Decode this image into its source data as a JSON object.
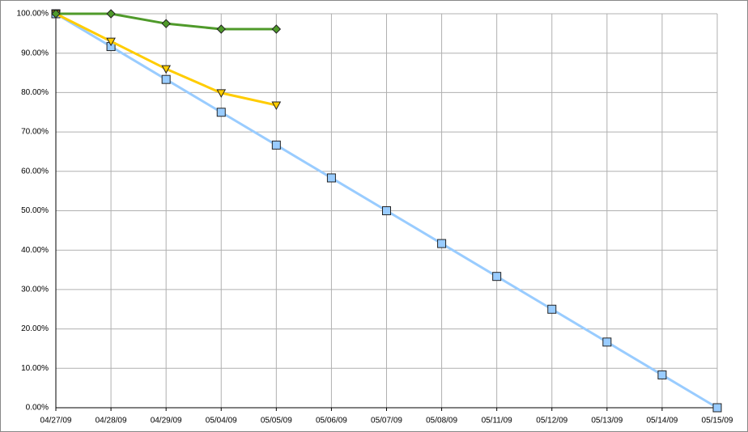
{
  "chart_data": {
    "type": "line",
    "categories": [
      "04/27/09",
      "04/28/09",
      "04/29/09",
      "05/04/09",
      "05/05/09",
      "05/06/09",
      "05/07/09",
      "05/08/09",
      "05/11/09",
      "05/12/09",
      "05/13/09",
      "05/14/09",
      "05/15/09"
    ],
    "series": [
      {
        "color": "#99ccff",
        "marker": "square",
        "values": [
          100,
          91.67,
          83.33,
          75,
          66.67,
          58.33,
          50,
          41.67,
          33.33,
          25,
          16.67,
          8.33,
          0
        ]
      },
      {
        "color": "#ffcc00",
        "marker": "triangle-down",
        "values": [
          100,
          93,
          86,
          79.9,
          76.8,
          null,
          null,
          null,
          null,
          null,
          null,
          null,
          null
        ]
      },
      {
        "color": "#4f9a2a",
        "marker": "diamond",
        "values": [
          100,
          100,
          97.5,
          96.1,
          96.1,
          null,
          null,
          null,
          null,
          null,
          null,
          null,
          null
        ]
      }
    ],
    "ylim": [
      0,
      100
    ],
    "yticks": [
      {
        "value": 0,
        "label": "0.00%"
      },
      {
        "value": 10,
        "label": "10.00%"
      },
      {
        "value": 20,
        "label": "20.00%"
      },
      {
        "value": 30,
        "label": "30.00%"
      },
      {
        "value": 40,
        "label": "40.00%"
      },
      {
        "value": 50,
        "label": "50.00%"
      },
      {
        "value": 60,
        "label": "60.00%"
      },
      {
        "value": 70,
        "label": "70.00%"
      },
      {
        "value": 80,
        "label": "80.00%"
      },
      {
        "value": 90,
        "label": "90.00%"
      },
      {
        "value": 100,
        "label": "100.00%"
      }
    ],
    "grid": true
  }
}
